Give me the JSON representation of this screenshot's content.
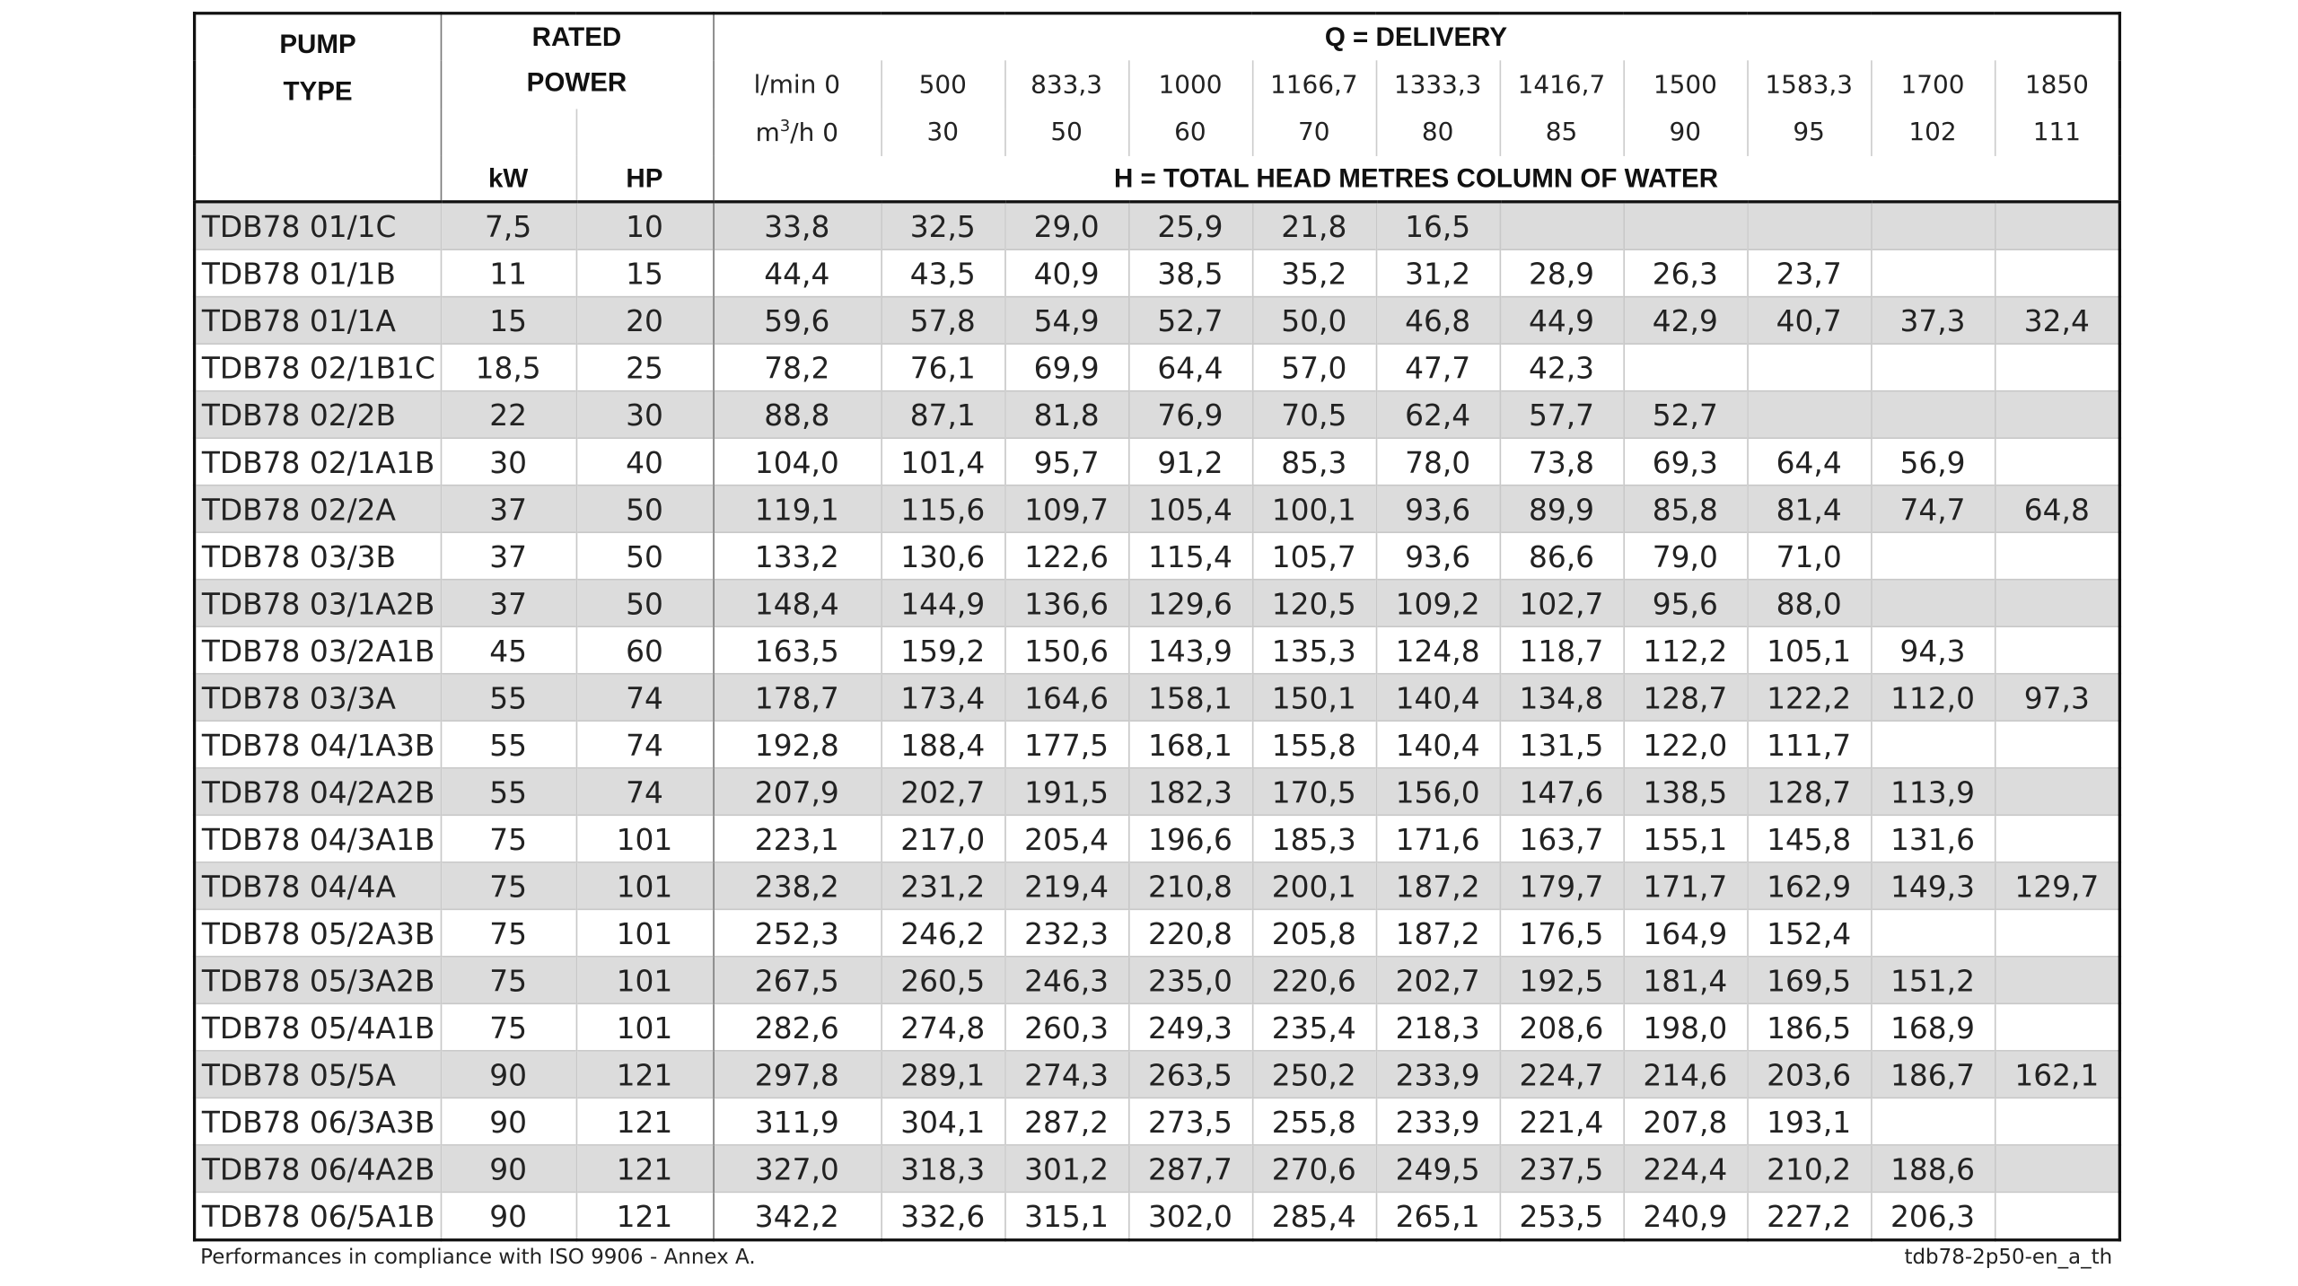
{
  "header": {
    "pump_type": [
      "PUMP",
      "TYPE"
    ],
    "rated_power": [
      "RATED",
      "POWER"
    ],
    "kw": "kW",
    "hp": "HP",
    "q_title": "Q = DELIVERY",
    "lmin_label": "l/min 0",
    "lmin": [
      "500",
      "833,3",
      "1000",
      "1166,7",
      "1333,3",
      "1416,7",
      "1500",
      "1583,3",
      "1700",
      "1850"
    ],
    "m3h_label": [
      "m",
      "3",
      "/h 0"
    ],
    "m3h": [
      "30",
      "50",
      "60",
      "70",
      "80",
      "85",
      "90",
      "95",
      "102",
      "111"
    ],
    "h_title": "H = TOTAL HEAD METRES COLUMN OF WATER"
  },
  "table": {
    "rows": [
      [
        "TDB78 01/1C",
        "7,5",
        "10",
        "33,8",
        "32,5",
        "29,0",
        "25,9",
        "21,8",
        "16,5",
        null,
        null,
        null,
        null,
        null
      ],
      [
        "TDB78 01/1B",
        "11",
        "15",
        "44,4",
        "43,5",
        "40,9",
        "38,5",
        "35,2",
        "31,2",
        "28,9",
        "26,3",
        "23,7",
        null,
        null
      ],
      [
        "TDB78 01/1A",
        "15",
        "20",
        "59,6",
        "57,8",
        "54,9",
        "52,7",
        "50,0",
        "46,8",
        "44,9",
        "42,9",
        "40,7",
        "37,3",
        "32,4"
      ],
      [
        "TDB78 02/1B1C",
        "18,5",
        "25",
        "78,2",
        "76,1",
        "69,9",
        "64,4",
        "57,0",
        "47,7",
        "42,3",
        null,
        null,
        null,
        null
      ],
      [
        "TDB78 02/2B",
        "22",
        "30",
        "88,8",
        "87,1",
        "81,8",
        "76,9",
        "70,5",
        "62,4",
        "57,7",
        "52,7",
        null,
        null,
        null
      ],
      [
        "TDB78 02/1A1B",
        "30",
        "40",
        "104,0",
        "101,4",
        "95,7",
        "91,2",
        "85,3",
        "78,0",
        "73,8",
        "69,3",
        "64,4",
        "56,9",
        null
      ],
      [
        "TDB78 02/2A",
        "37",
        "50",
        "119,1",
        "115,6",
        "109,7",
        "105,4",
        "100,1",
        "93,6",
        "89,9",
        "85,8",
        "81,4",
        "74,7",
        "64,8"
      ],
      [
        "TDB78 03/3B",
        "37",
        "50",
        "133,2",
        "130,6",
        "122,6",
        "115,4",
        "105,7",
        "93,6",
        "86,6",
        "79,0",
        "71,0",
        null,
        null
      ],
      [
        "TDB78 03/1A2B",
        "37",
        "50",
        "148,4",
        "144,9",
        "136,6",
        "129,6",
        "120,5",
        "109,2",
        "102,7",
        "95,6",
        "88,0",
        null,
        null
      ],
      [
        "TDB78 03/2A1B",
        "45",
        "60",
        "163,5",
        "159,2",
        "150,6",
        "143,9",
        "135,3",
        "124,8",
        "118,7",
        "112,2",
        "105,1",
        "94,3",
        null
      ],
      [
        "TDB78 03/3A",
        "55",
        "74",
        "178,7",
        "173,4",
        "164,6",
        "158,1",
        "150,1",
        "140,4",
        "134,8",
        "128,7",
        "122,2",
        "112,0",
        "97,3"
      ],
      [
        "TDB78 04/1A3B",
        "55",
        "74",
        "192,8",
        "188,4",
        "177,5",
        "168,1",
        "155,8",
        "140,4",
        "131,5",
        "122,0",
        "111,7",
        null,
        null
      ],
      [
        "TDB78 04/2A2B",
        "55",
        "74",
        "207,9",
        "202,7",
        "191,5",
        "182,3",
        "170,5",
        "156,0",
        "147,6",
        "138,5",
        "128,7",
        "113,9",
        null
      ],
      [
        "TDB78 04/3A1B",
        "75",
        "101",
        "223,1",
        "217,0",
        "205,4",
        "196,6",
        "185,3",
        "171,6",
        "163,7",
        "155,1",
        "145,8",
        "131,6",
        null
      ],
      [
        "TDB78 04/4A",
        "75",
        "101",
        "238,2",
        "231,2",
        "219,4",
        "210,8",
        "200,1",
        "187,2",
        "179,7",
        "171,7",
        "162,9",
        "149,3",
        "129,7"
      ],
      [
        "TDB78 05/2A3B",
        "75",
        "101",
        "252,3",
        "246,2",
        "232,3",
        "220,8",
        "205,8",
        "187,2",
        "176,5",
        "164,9",
        "152,4",
        null,
        null
      ],
      [
        "TDB78 05/3A2B",
        "75",
        "101",
        "267,5",
        "260,5",
        "246,3",
        "235,0",
        "220,6",
        "202,7",
        "192,5",
        "181,4",
        "169,5",
        "151,2",
        null
      ],
      [
        "TDB78 05/4A1B",
        "75",
        "101",
        "282,6",
        "274,8",
        "260,3",
        "249,3",
        "235,4",
        "218,3",
        "208,6",
        "198,0",
        "186,5",
        "168,9",
        null
      ],
      [
        "TDB78 05/5A",
        "90",
        "121",
        "297,8",
        "289,1",
        "274,3",
        "263,5",
        "250,2",
        "233,9",
        "224,7",
        "214,6",
        "203,6",
        "186,7",
        "162,1"
      ],
      [
        "TDB78 06/3A3B",
        "90",
        "121",
        "311,9",
        "304,1",
        "287,2",
        "273,5",
        "255,8",
        "233,9",
        "221,4",
        "207,8",
        "193,1",
        null,
        null
      ],
      [
        "TDB78 06/4A2B",
        "90",
        "121",
        "327,0",
        "318,3",
        "301,2",
        "287,7",
        "270,6",
        "249,5",
        "237,5",
        "224,4",
        "210,2",
        "188,6",
        null
      ],
      [
        "TDB78 06/5A1B",
        "90",
        "121",
        "342,2",
        "332,6",
        "315,1",
        "302,0",
        "285,4",
        "265,1",
        "253,5",
        "240,9",
        "227,2",
        "206,3",
        null
      ]
    ]
  },
  "footer": {
    "note": "Performances in compliance with ISO 9906 - Annex A.",
    "code": "tdb78-2p50-en_a_th"
  }
}
